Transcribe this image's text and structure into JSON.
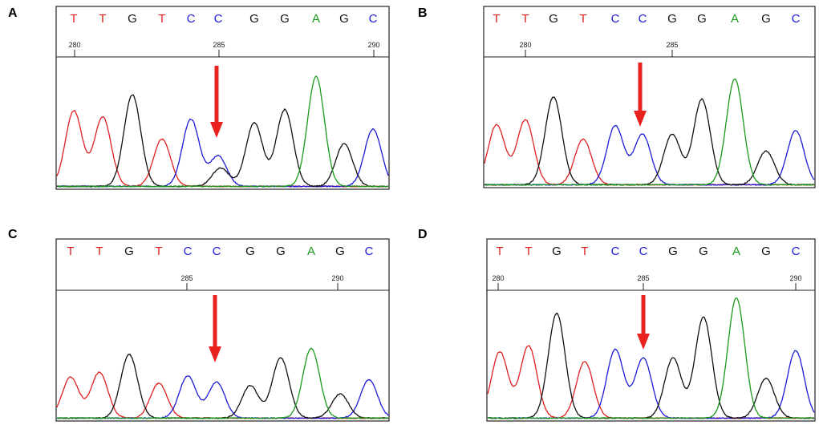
{
  "colors": {
    "T": "#e02020",
    "C": "#1c1cd8",
    "G": "#111111",
    "A": "#1a9a1a",
    "arrow": "#e8231f"
  },
  "panels": [
    {
      "letter": "A",
      "bases": [
        "T",
        "T",
        "G",
        "T",
        "C",
        "C",
        "G",
        "G",
        "A",
        "G",
        "C"
      ],
      "ticks": [
        {
          "label": "280"
        },
        {
          "label": "285"
        },
        {
          "label": "290"
        }
      ]
    },
    {
      "letter": "B",
      "bases": [
        "T",
        "T",
        "G",
        "T",
        "C",
        "C",
        "G",
        "G",
        "A",
        "G",
        "C"
      ],
      "ticks": [
        {
          "label": "280"
        },
        {
          "label": "285"
        }
      ]
    },
    {
      "letter": "C",
      "bases": [
        "T",
        "T",
        "G",
        "T",
        "C",
        "C",
        "G",
        "G",
        "A",
        "G",
        "C"
      ],
      "ticks": [
        {
          "label": "285"
        },
        {
          "label": "290"
        }
      ]
    },
    {
      "letter": "D",
      "bases": [
        "T",
        "T",
        "G",
        "T",
        "C",
        "C",
        "G",
        "G",
        "A",
        "G",
        "C"
      ],
      "ticks": [
        {
          "label": "280"
        },
        {
          "label": "285"
        },
        {
          "label": "290"
        }
      ]
    }
  ],
  "chart_data": [
    {
      "type": "line",
      "panel": "A",
      "bases": [
        "T",
        "T",
        "G",
        "T",
        "C",
        "C",
        "G",
        "G",
        "A",
        "G",
        "C"
      ],
      "tick_labels": [
        "280",
        "285",
        "290"
      ],
      "peaks": [
        0.62,
        0.57,
        0.75,
        0.39,
        0.55,
        0.25,
        0.52,
        0.63,
        0.9,
        0.35,
        0.47
      ],
      "secondary_peak": {
        "base_index": 5,
        "base": "G",
        "height": 0.15
      }
    },
    {
      "type": "line",
      "panel": "B",
      "bases": [
        "T",
        "T",
        "G",
        "T",
        "C",
        "C",
        "G",
        "G",
        "A",
        "G",
        "C"
      ],
      "tick_labels": [
        "280",
        "285"
      ],
      "peaks": [
        0.5,
        0.54,
        0.73,
        0.38,
        0.49,
        0.42,
        0.42,
        0.71,
        0.88,
        0.28,
        0.45
      ]
    },
    {
      "type": "line",
      "panel": "C",
      "bases": [
        "T",
        "T",
        "G",
        "T",
        "C",
        "C",
        "G",
        "G",
        "A",
        "G",
        "C"
      ],
      "tick_labels": [
        "285",
        "290"
      ],
      "peaks": [
        0.34,
        0.38,
        0.53,
        0.29,
        0.35,
        0.3,
        0.27,
        0.5,
        0.58,
        0.2,
        0.32
      ]
    },
    {
      "type": "line",
      "panel": "D",
      "bases": [
        "T",
        "T",
        "G",
        "T",
        "C",
        "C",
        "G",
        "G",
        "A",
        "G",
        "C"
      ],
      "tick_labels": [
        "280",
        "285",
        "290"
      ],
      "peaks": [
        0.55,
        0.6,
        0.87,
        0.47,
        0.57,
        0.5,
        0.5,
        0.84,
        1.0,
        0.33,
        0.56
      ]
    }
  ]
}
